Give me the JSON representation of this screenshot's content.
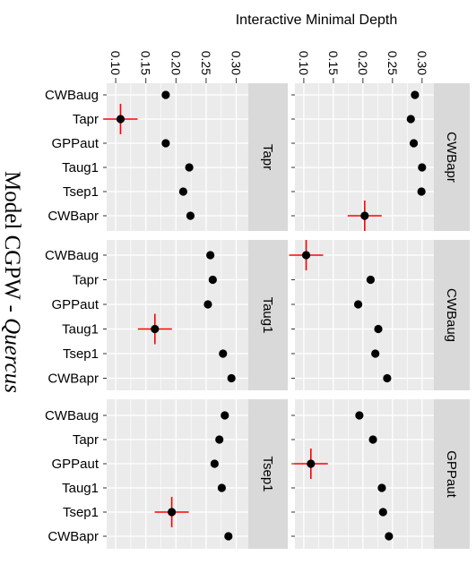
{
  "chart_data": {
    "type": "scatter",
    "title_main": "Model CGPW - ",
    "title_italic": "Quercus",
    "xlabel": "Interactive Minimal Depth",
    "xlim": [
      0.085,
      0.32
    ],
    "xticks": [
      0.1,
      0.15,
      0.2,
      0.25,
      0.3
    ],
    "xtick_labels": [
      "0.10",
      "0.15",
      "0.20",
      "0.25",
      "0.30"
    ],
    "categories": [
      "CWBaug",
      "Tapr",
      "GPPaut",
      "Taug1",
      "Tsep1",
      "CWBapr"
    ],
    "grid": true,
    "colors": {
      "panel": "#ebebeb",
      "strip": "#d9d9d9",
      "grid": "#ffffff",
      "point": "#000000",
      "highlight": "#ff0000"
    },
    "panels": [
      {
        "strip": "Tapr",
        "highlight": "Tapr",
        "values": [
          0.183,
          0.108,
          0.183,
          0.222,
          0.212,
          0.224
        ]
      },
      {
        "strip": "CWBapr",
        "highlight": "CWBapr",
        "values": [
          0.288,
          0.281,
          0.286,
          0.3,
          0.299,
          0.203
        ]
      },
      {
        "strip": "Taug1",
        "highlight": "Taug1",
        "values": [
          0.257,
          0.261,
          0.253,
          0.165,
          0.278,
          0.292
        ]
      },
      {
        "strip": "CWBaug",
        "highlight": "CWBaug",
        "values": [
          0.104,
          0.213,
          0.192,
          0.226,
          0.221,
          0.241
        ]
      },
      {
        "strip": "Tsep1",
        "highlight": "Tsep1",
        "values": [
          0.281,
          0.272,
          0.264,
          0.276,
          0.193,
          0.287
        ]
      },
      {
        "strip": "GPPaut",
        "highlight": "GPPaut",
        "values": [
          0.194,
          0.217,
          0.112,
          0.232,
          0.234,
          0.244
        ]
      }
    ]
  }
}
